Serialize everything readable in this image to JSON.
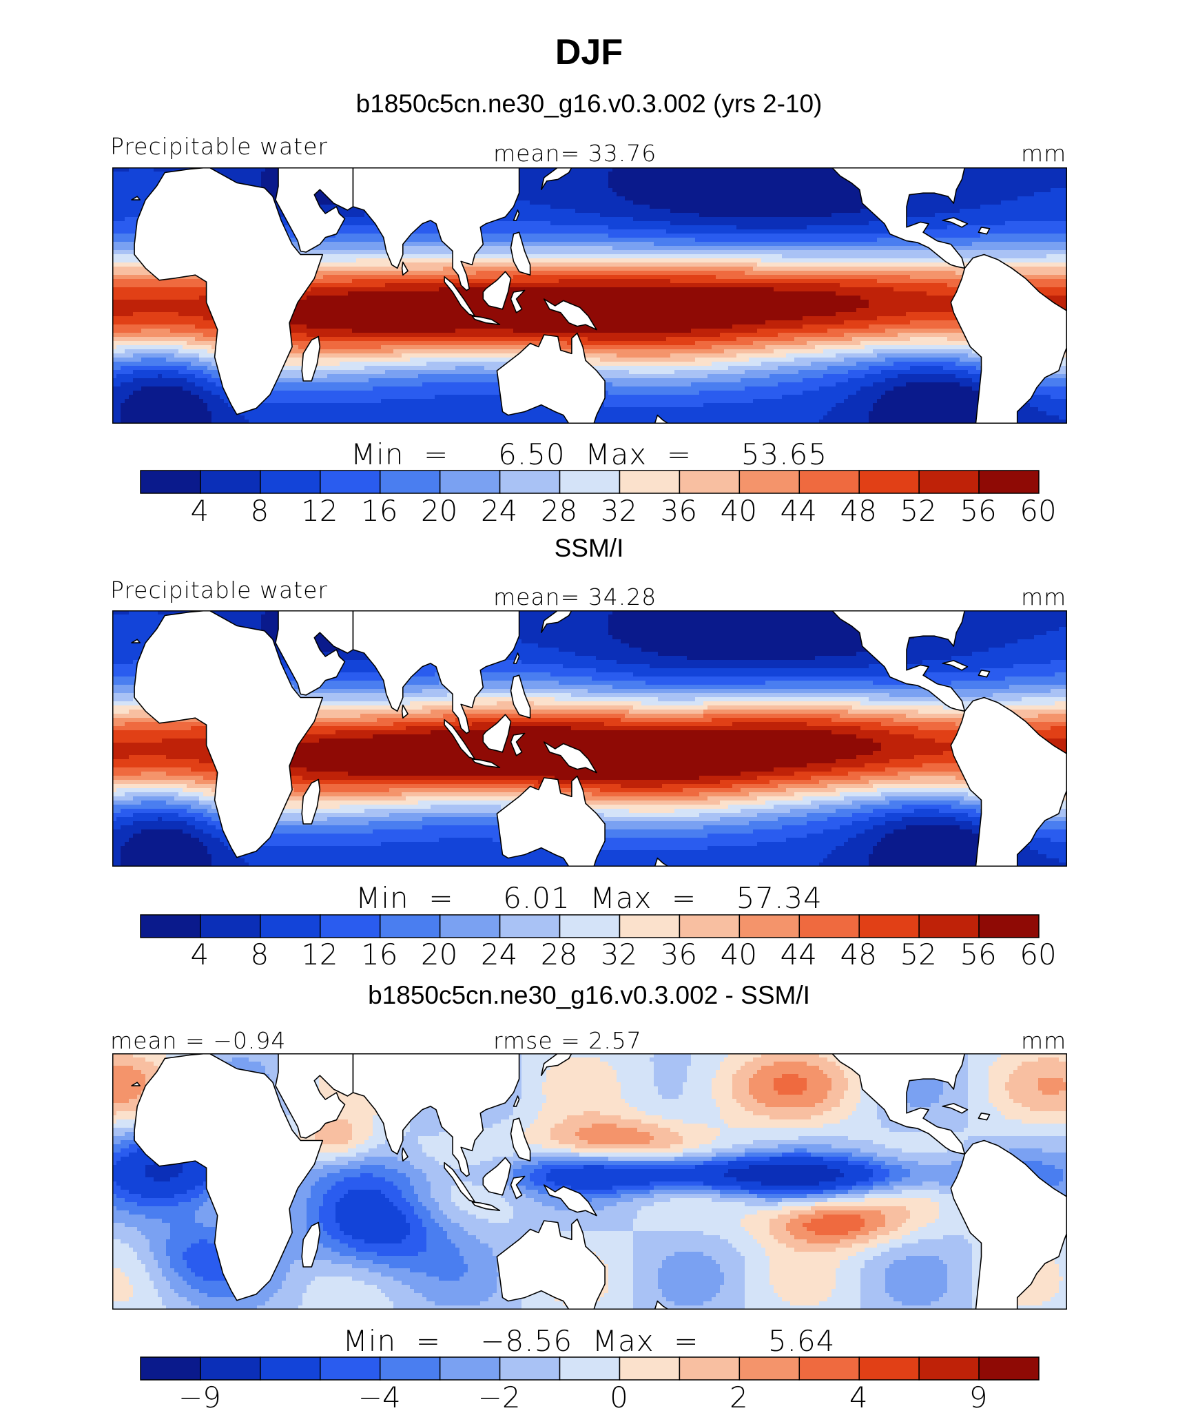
{
  "title": "DJF",
  "panels": [
    {
      "subtitle": "b1850c5cn.ne30_g16.v0.3.002 (yrs 2-10)",
      "left_label": "Precipitable water",
      "center_label": "mean=   33.76",
      "right_label": "mm",
      "minmax": "Min  =     6.50  Max  =     53.65",
      "colorbar_ticks": [
        "4",
        "8",
        "12",
        "16",
        "20",
        "24",
        "28",
        "32",
        "36",
        "40",
        "44",
        "48",
        "52",
        "56",
        "60"
      ],
      "colors": [
        "#0a1a8c",
        "#0b2fb8",
        "#1344d9",
        "#2a5cef",
        "#4a7ef0",
        "#7aa1f2",
        "#a9c2f5",
        "#d4e3f8",
        "#fbe1cc",
        "#f8bfa1",
        "#f4946b",
        "#ef6a3f",
        "#e14016",
        "#bf2208",
        "#8f0a05"
      ],
      "field": "model"
    },
    {
      "subtitle": "SSM/I",
      "left_label": "Precipitable water",
      "center_label": "mean=   34.28",
      "right_label": "mm",
      "minmax": "Min  =     6.01  Max  =    57.34",
      "colorbar_ticks": [
        "4",
        "8",
        "12",
        "16",
        "20",
        "24",
        "28",
        "32",
        "36",
        "40",
        "44",
        "48",
        "52",
        "56",
        "60"
      ],
      "colors": [
        "#0a1a8c",
        "#0b2fb8",
        "#1344d9",
        "#2a5cef",
        "#4a7ef0",
        "#7aa1f2",
        "#a9c2f5",
        "#d4e3f8",
        "#fbe1cc",
        "#f8bfa1",
        "#f4946b",
        "#ef6a3f",
        "#e14016",
        "#bf2208",
        "#8f0a05"
      ],
      "field": "obs"
    },
    {
      "subtitle": "b1850c5cn.ne30_g16.v0.3.002 - SSM/I",
      "left_label": "mean =   −0.94",
      "center_label": "rmse  =     2.57",
      "right_label": "mm",
      "minmax": "Min  =    −8.56  Max  =       5.64",
      "colorbar_ticks": [
        "−9",
        "−4",
        "−2",
        "0",
        "2",
        "4",
        "9"
      ],
      "colors": [
        "#0a1a8c",
        "#0b2fb8",
        "#1344d9",
        "#2a5cef",
        "#4a7ef0",
        "#7aa1f2",
        "#a9c2f5",
        "#d4e3f8",
        "#fbe1cc",
        "#f8bfa1",
        "#f4946b",
        "#ef6a3f",
        "#e14016",
        "#bf2208",
        "#8f0a05"
      ],
      "field": "diff"
    }
  ],
  "chart_data": [
    {
      "type": "heatmap",
      "title": "DJF",
      "subtitle": "b1850c5cn.ne30_g16.v0.3.002 (yrs 2-10)",
      "variable": "Precipitable water",
      "units": "mm",
      "mean": 33.76,
      "min": 6.5,
      "max": 53.65,
      "levels": [
        4,
        8,
        12,
        16,
        20,
        24,
        28,
        32,
        36,
        40,
        44,
        48,
        52,
        56,
        60
      ]
    },
    {
      "type": "heatmap",
      "subtitle": "SSM/I",
      "variable": "Precipitable water",
      "units": "mm",
      "mean": 34.28,
      "min": 6.01,
      "max": 57.34,
      "levels": [
        4,
        8,
        12,
        16,
        20,
        24,
        28,
        32,
        36,
        40,
        44,
        48,
        52,
        56,
        60
      ]
    },
    {
      "type": "heatmap",
      "subtitle": "b1850c5cn.ne30_g16.v0.3.002 - SSM/I",
      "units": "mm",
      "mean": -0.94,
      "rmse": 2.57,
      "min": -8.56,
      "max": 5.64,
      "levels": [
        -9,
        -6,
        -4,
        -3,
        -2,
        -1,
        0,
        1,
        2,
        3,
        4,
        6,
        9
      ]
    }
  ]
}
